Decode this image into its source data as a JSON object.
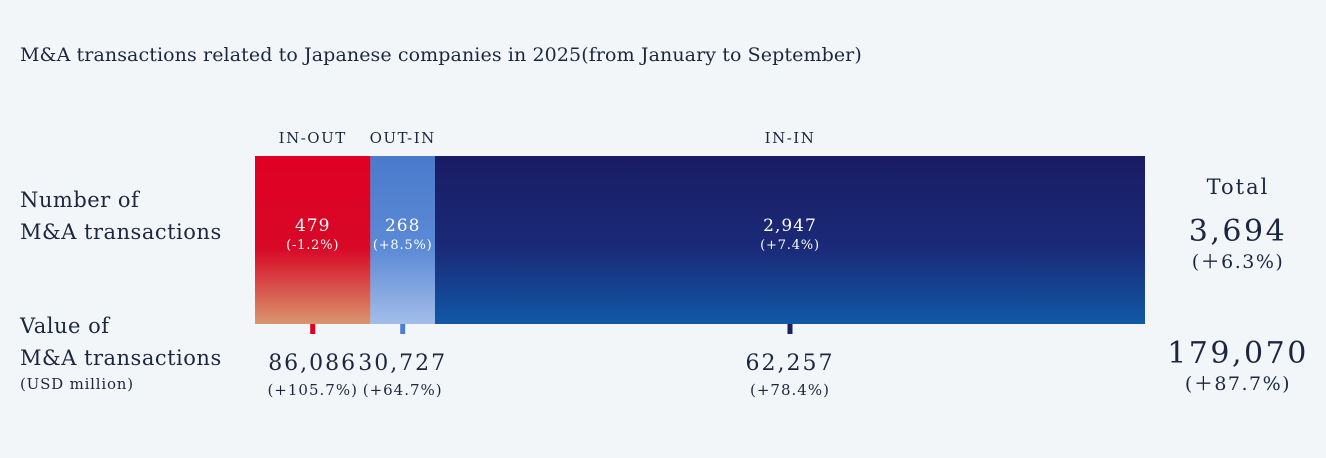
{
  "title": "M&A transactions related to Japanese companies in 2025(from January to September)",
  "row_labels": {
    "count_line1": "Number of",
    "count_line2": "M&A transactions",
    "value_line1": "Value of",
    "value_line2": "M&A transactions",
    "value_unit": "(USD million)"
  },
  "total_label": "Total",
  "colors": {
    "in_out": "#e00024",
    "out_in": "#4e7ed0",
    "in_in": "#1b1f66",
    "text": "#1d2640"
  },
  "chart_data": {
    "type": "bar",
    "orientation": "horizontal-stacked",
    "title": "M&A transactions related to Japanese companies in 2025(from January to September)",
    "categories": [
      "IN-OUT",
      "OUT-IN",
      "IN-IN"
    ],
    "series": [
      {
        "name": "Number of M&A transactions",
        "values": [
          479,
          268,
          2947
        ],
        "labels": [
          "479",
          "268",
          "2,947"
        ],
        "changes": [
          "(-1.2%)",
          "(+8.5%)",
          "(+7.4%)"
        ],
        "total": "3,694",
        "total_change": "(＋6.3%)"
      },
      {
        "name": "Value of M&A transactions",
        "unit": "(USD million)",
        "values": [
          86086,
          30727,
          62257
        ],
        "labels": [
          "86,086",
          "30,727",
          "62,257"
        ],
        "changes": [
          "(+105.7%)",
          "(+64.7%)",
          "(+78.4%)"
        ],
        "total": "179,070",
        "total_change": "(＋87.7%)"
      }
    ]
  }
}
